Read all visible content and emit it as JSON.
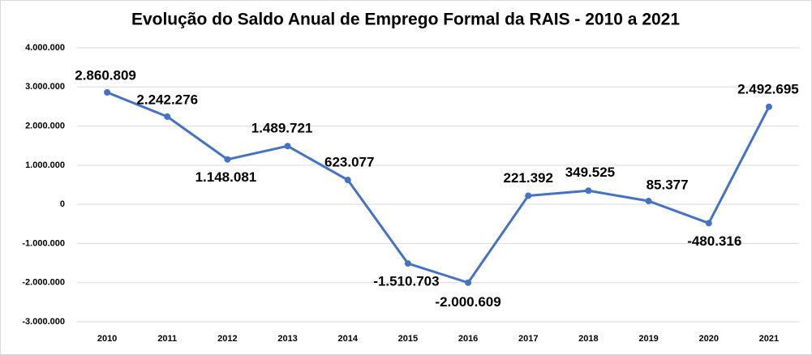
{
  "chart_data": {
    "type": "line",
    "title": "Evolução do Saldo Anual de Emprego Formal da RAIS - 2010 a 2021",
    "categories": [
      "2010",
      "2011",
      "2012",
      "2013",
      "2014",
      "2015",
      "2016",
      "2017",
      "2018",
      "2019",
      "2020",
      "2021"
    ],
    "series": [
      {
        "name": "Saldo",
        "color": "#4472c4",
        "values": [
          2860809,
          2242276,
          1148081,
          1489721,
          623077,
          -1510703,
          -2000609,
          221392,
          349525,
          85377,
          -480316,
          2492695
        ],
        "value_labels": [
          "2.860.809",
          "2.242.276",
          "1.148.081",
          "1.489.721",
          "623.077",
          "-1.510.703",
          "-2.000.609",
          "221.392",
          "349.525",
          "85.377",
          "-480.316",
          "2.492.695"
        ]
      }
    ],
    "ylim": [
      -3000000,
      4000000
    ],
    "yticks": [
      {
        "value": -3000000,
        "label": "-3.000.000"
      },
      {
        "value": -2000000,
        "label": "-2.000.000"
      },
      {
        "value": -1000000,
        "label": "-1.000.000"
      },
      0,
      {
        "value": 1000000,
        "label": "1.000.000"
      },
      {
        "value": 2000000,
        "label": "2.000.000"
      },
      {
        "value": 3000000,
        "label": "3.000.000"
      },
      {
        "value": 4000000,
        "label": "4.000.000"
      }
    ],
    "grid": true
  }
}
